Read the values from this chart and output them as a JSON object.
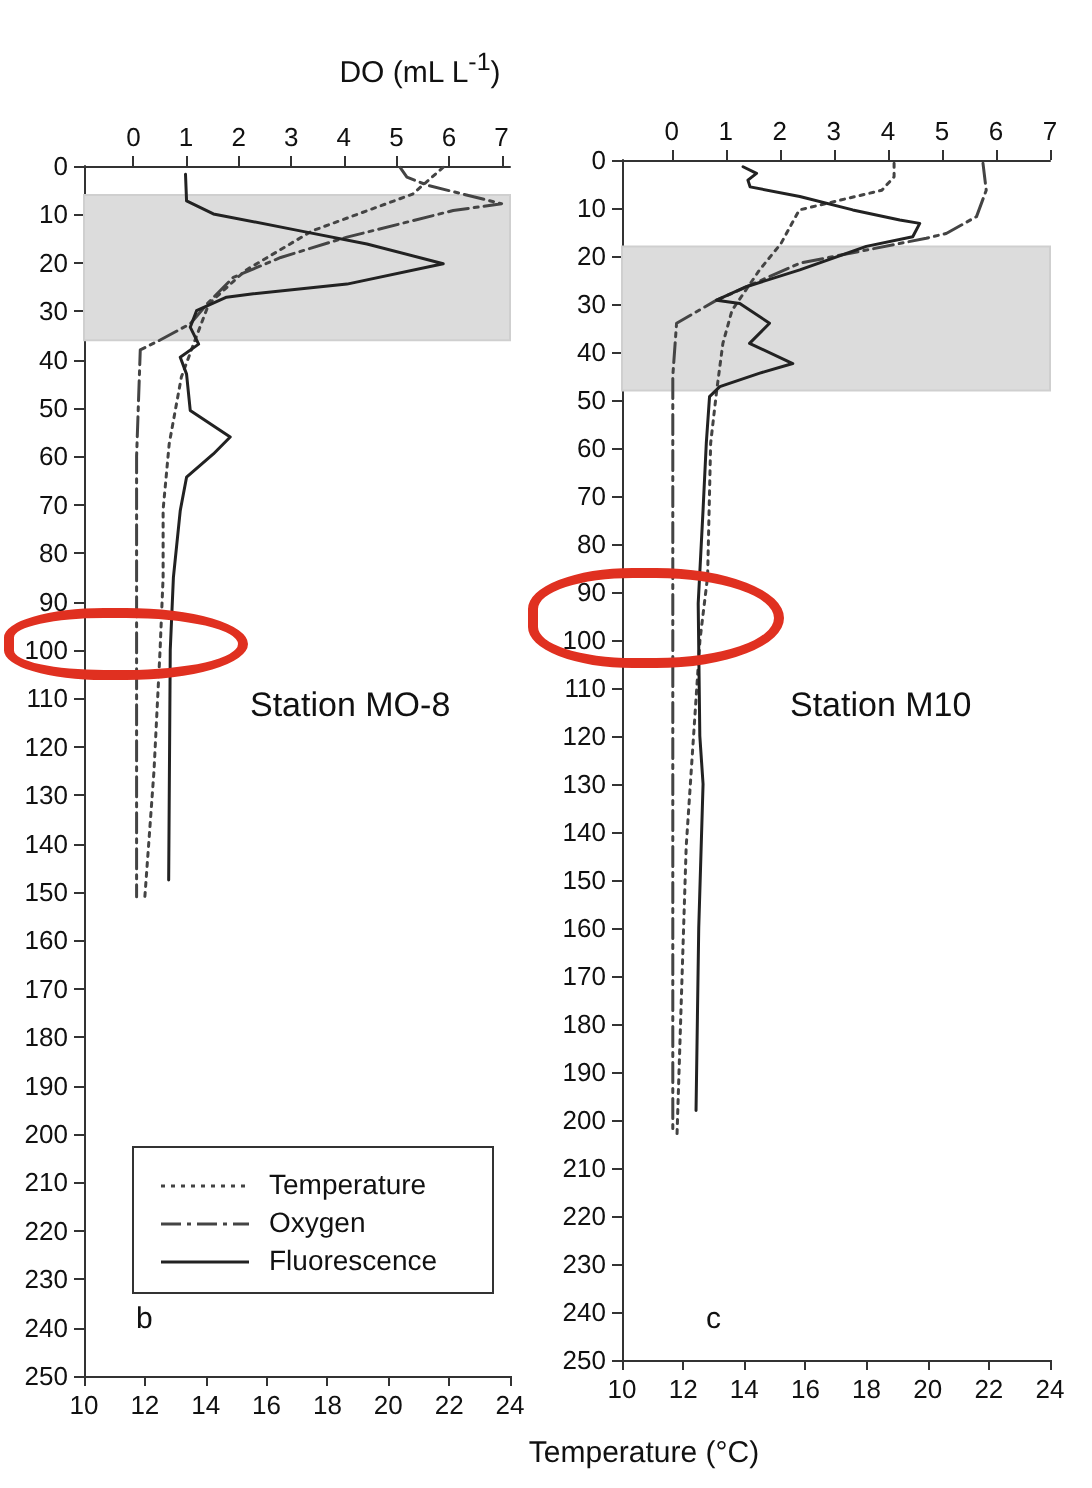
{
  "chart_data": [
    {
      "type": "line",
      "x2label": "DO (mL L$^{-1}$)",
      "annotations": [
        "Station MO-8",
        "b"
      ],
      "xlim": [
        10,
        24
      ],
      "xticks": [
        10,
        12,
        14,
        16,
        18,
        20,
        22,
        24
      ],
      "x2lim": [
        -0.94,
        7.16
      ],
      "x2ticks": [
        0,
        1,
        2,
        3,
        4,
        5,
        6,
        7
      ],
      "ylim": [
        250,
        0
      ],
      "yticks": [
        0,
        10,
        20,
        30,
        40,
        50,
        60,
        70,
        80,
        90,
        100,
        110,
        120,
        130,
        140,
        150,
        160,
        170,
        180,
        190,
        200,
        210,
        220,
        230,
        240,
        250
      ],
      "grid": false,
      "marker": "none",
      "legend": "bottom left",
      "bands": [
        {
          "axis": "y",
          "from": 6,
          "to": 36,
          "color": "#dcdcdc"
        }
      ],
      "series": [
        {
          "name": "Temperature",
          "color": "#444444",
          "line_style": "dotted",
          "x": [
            21.8,
            20.8,
            17.5,
            15.3,
            14.1,
            13.6,
            13.2,
            12.8,
            12.6,
            12.6,
            12.5,
            12.3,
            12.0
          ],
          "values": [
            0.3,
            5.8,
            13.4,
            21.6,
            28.5,
            36.8,
            43.6,
            57.4,
            71,
            85,
            100,
            125,
            151
          ]
        },
        {
          "name": "Oxygen",
          "color": "#444444",
          "line_style": "dashed",
          "axis": "x2",
          "x": [
            5.07,
            5.2,
            5.6,
            7.0,
            6.08,
            4.06,
            2.8,
            1.9,
            1.4,
            1.08,
            0.5,
            0.13,
            0.06,
            0.06,
            0.06
          ],
          "values": [
            0.3,
            2.3,
            4,
            7.8,
            9.2,
            14.7,
            18.9,
            23,
            28.5,
            32.6,
            36,
            38,
            60,
            100,
            151
          ]
        },
        {
          "name": "Fluorescence",
          "color": "#222222",
          "line_style": "solid",
          "axis": "x2",
          "x": [
            0.99,
            1.01,
            1.52,
            3.17,
            4.44,
            5.89,
            4.06,
            2.28,
            1.77,
            1.2,
            1.08,
            1.24,
            0.89,
            1.01,
            1.08,
            1.84,
            1.52,
            1.01,
            0.89,
            0.76,
            0.7,
            0.67
          ],
          "values": [
            1.7,
            7.2,
            9.9,
            13.4,
            16.1,
            20.2,
            24.4,
            26.4,
            27.1,
            29.9,
            33.3,
            36.8,
            39.5,
            43,
            50.5,
            56,
            59.5,
            64.3,
            71.2,
            85,
            100,
            147.5
          ]
        }
      ]
    },
    {
      "type": "line",
      "xlabel": "Temperature (°C)",
      "annotations": [
        "Station M10",
        "c"
      ],
      "xlim": [
        10,
        24
      ],
      "xticks": [
        10,
        12,
        14,
        16,
        18,
        20,
        22,
        24
      ],
      "x2lim": [
        -0.92,
        7
      ],
      "x2ticks": [
        0,
        1,
        2,
        3,
        4,
        5,
        6,
        7
      ],
      "ylim": [
        250,
        0
      ],
      "yticks": [
        0,
        10,
        20,
        30,
        40,
        50,
        60,
        70,
        80,
        90,
        100,
        110,
        120,
        130,
        140,
        150,
        160,
        170,
        180,
        190,
        200,
        210,
        220,
        230,
        240,
        250
      ],
      "grid": false,
      "marker": "none",
      "bands": [
        {
          "axis": "y",
          "from": 18,
          "to": 48,
          "color": "#dcdcdc"
        }
      ],
      "series": [
        {
          "color": "#444444",
          "line_style": "dotted",
          "x": [
            18.9,
            18.9,
            18.5,
            15.8,
            15.2,
            14.5,
            13.6,
            13.3,
            13.1,
            12.9,
            12.8,
            12.55,
            12.1,
            11.8
          ],
          "values": [
            0.7,
            3.5,
            6.3,
            10.4,
            17.4,
            22.9,
            31.3,
            38.2,
            47.9,
            59,
            86.8,
            100,
            143,
            203
          ]
        },
        {
          "color": "#444444",
          "line_style": "dashed",
          "axis": "x2",
          "x": [
            5.76,
            5.82,
            5.64,
            5.08,
            4.71,
            2.37,
            0.83,
            0.09,
            0.02,
            0.02,
            0.02
          ],
          "values": [
            0.7,
            6.3,
            11.8,
            15.3,
            16.3,
            21.5,
            29.2,
            34,
            45,
            100,
            202
          ]
        },
        {
          "color": "#222222",
          "line_style": "solid",
          "axis": "x2",
          "x": [
            1.32,
            1.57,
            1.41,
            1.45,
            2.37,
            3.35,
            4.22,
            4.59,
            4.46,
            3.6,
            2.37,
            1.38,
            0.83,
            1.26,
            1.81,
            1.44,
            2.24,
            1.63,
            0.89,
            0.7,
            0.64,
            0.58,
            0.49,
            0.52,
            0.58,
            0.5,
            0.45
          ],
          "values": [
            1.4,
            2.8,
            4.2,
            5.6,
            7.6,
            10.4,
            12.5,
            13.2,
            16,
            18,
            22.9,
            26.4,
            29.2,
            29.9,
            34,
            38.2,
            42.4,
            44.4,
            47.2,
            49.3,
            59,
            72.9,
            92.4,
            120,
            130,
            160,
            198
          ]
        }
      ]
    }
  ]
}
